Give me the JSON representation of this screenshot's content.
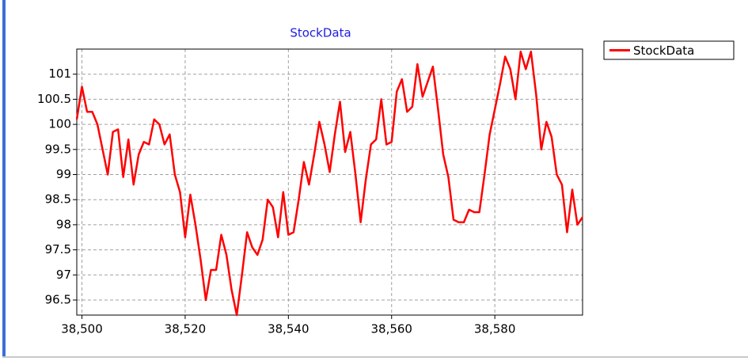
{
  "chart_data": {
    "type": "line",
    "title": "StockData",
    "x": [
      38499,
      38500,
      38501,
      38502,
      38503,
      38504,
      38505,
      38506,
      38507,
      38508,
      38509,
      38510,
      38511,
      38512,
      38513,
      38514,
      38515,
      38516,
      38517,
      38518,
      38519,
      38520,
      38521,
      38522,
      38523,
      38524,
      38525,
      38526,
      38527,
      38528,
      38529,
      38530,
      38531,
      38532,
      38533,
      38534,
      38535,
      38536,
      38537,
      38538,
      38539,
      38540,
      38541,
      38542,
      38543,
      38544,
      38545,
      38546,
      38547,
      38548,
      38549,
      38550,
      38551,
      38552,
      38553,
      38554,
      38555,
      38556,
      38557,
      38558,
      38559,
      38560,
      38561,
      38562,
      38563,
      38564,
      38565,
      38566,
      38567,
      38568,
      38569,
      38570,
      38571,
      38572,
      38573,
      38574,
      38575,
      38576,
      38577,
      38578,
      38579,
      38580,
      38581,
      38582,
      38583,
      38584,
      38585,
      38586,
      38587,
      38588,
      38589,
      38590,
      38591,
      38592,
      38593,
      38594,
      38595,
      38596,
      38597
    ],
    "series": [
      {
        "name": "StockData",
        "color": "#ff0000",
        "values": [
          100.1,
          100.75,
          100.25,
          100.25,
          100.0,
          99.5,
          99.0,
          99.85,
          99.9,
          98.95,
          99.7,
          98.8,
          99.4,
          99.65,
          99.6,
          100.1,
          100.0,
          99.6,
          99.8,
          99.0,
          98.65,
          97.75,
          98.6,
          98.0,
          97.3,
          96.5,
          97.1,
          97.1,
          97.8,
          97.4,
          96.7,
          96.2,
          97.0,
          97.85,
          97.55,
          97.4,
          97.7,
          98.5,
          98.35,
          97.75,
          98.65,
          97.8,
          97.85,
          98.5,
          99.25,
          98.8,
          99.4,
          100.05,
          99.6,
          99.05,
          99.8,
          100.45,
          99.45,
          99.85,
          99.0,
          98.05,
          98.9,
          99.6,
          99.7,
          100.5,
          99.6,
          99.65,
          100.65,
          100.9,
          100.25,
          100.35,
          101.2,
          100.55,
          100.85,
          101.15,
          100.3,
          99.4,
          98.95,
          98.1,
          98.05,
          98.05,
          98.3,
          98.25,
          98.25,
          99.0,
          99.8,
          100.3,
          100.8,
          101.35,
          101.1,
          100.5,
          101.45,
          101.1,
          101.45,
          100.6,
          99.5,
          100.05,
          99.75,
          99.0,
          98.8,
          97.85,
          98.7,
          98.0,
          98.15
        ]
      }
    ],
    "xlim": [
      38499,
      38597
    ],
    "xticks": [
      {
        "value": 38500,
        "label": "38,500"
      },
      {
        "value": 38520,
        "label": "38,520"
      },
      {
        "value": 38540,
        "label": "38,540"
      },
      {
        "value": 38560,
        "label": "38,560"
      },
      {
        "value": 38580,
        "label": "38,580"
      }
    ],
    "ylim": [
      96.2,
      101.5
    ],
    "yticks": [
      96.5,
      97,
      97.5,
      98,
      98.5,
      99,
      99.5,
      100,
      100.5,
      101
    ],
    "grid": true,
    "legend": "right"
  }
}
